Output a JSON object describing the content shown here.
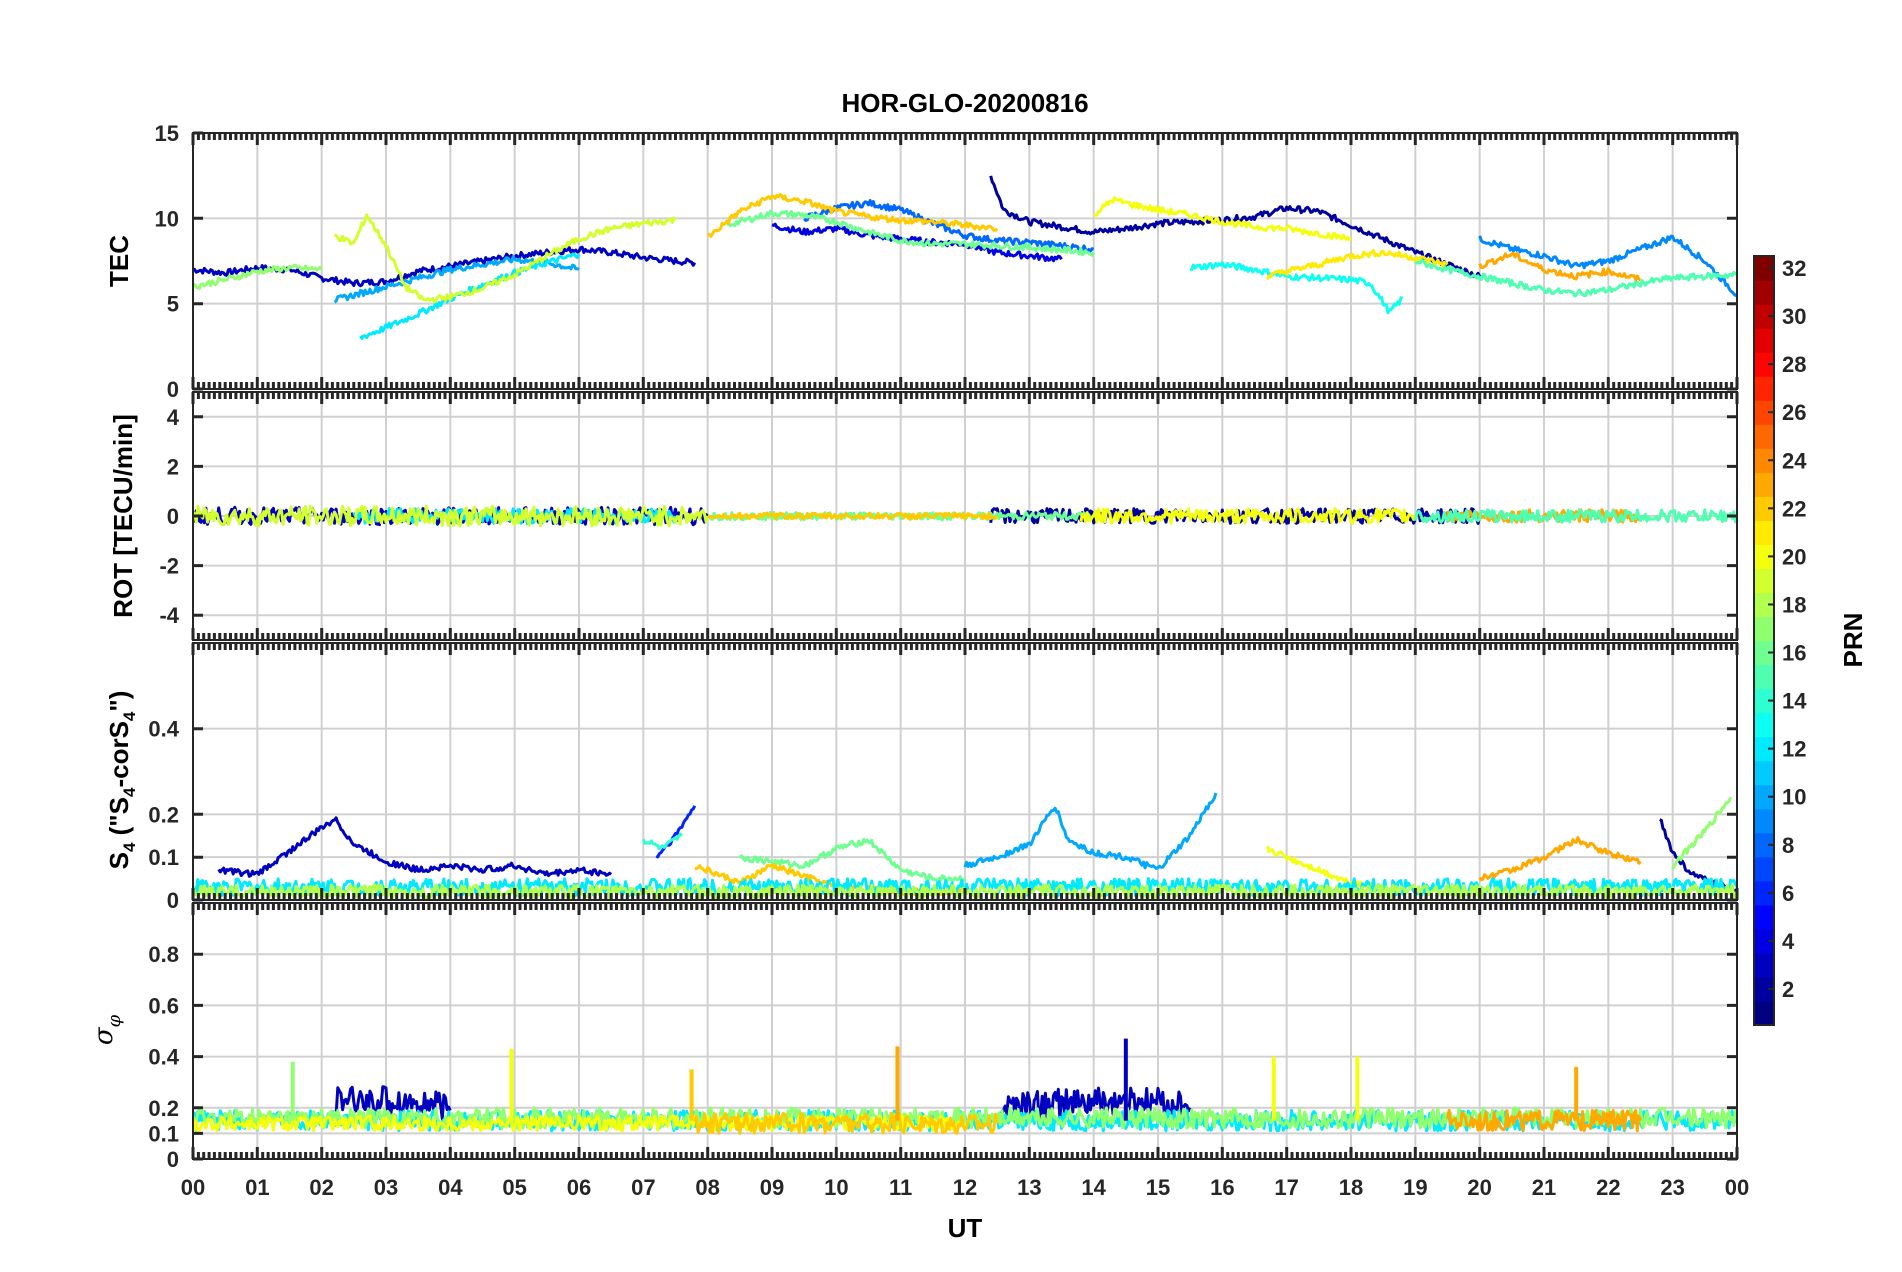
{
  "chart_data": {
    "type": "line",
    "title": "HOR-GLO-20200816",
    "xlabel": "UT",
    "x_range_hours": [
      0,
      24
    ],
    "x_tick_labels": [
      "00",
      "01",
      "02",
      "03",
      "04",
      "05",
      "06",
      "07",
      "08",
      "09",
      "10",
      "11",
      "12",
      "13",
      "14",
      "15",
      "16",
      "17",
      "18",
      "19",
      "20",
      "21",
      "22",
      "23",
      "00"
    ],
    "colorbar": {
      "label": "PRN",
      "range": [
        1,
        32
      ],
      "tick_labels": [
        "2",
        "4",
        "6",
        "8",
        "10",
        "12",
        "14",
        "16",
        "18",
        "20",
        "22",
        "24",
        "26",
        "28",
        "30",
        "32"
      ]
    },
    "panels": [
      {
        "key": "tec",
        "ylabel": "TEC",
        "ylim": [
          0,
          15
        ],
        "yticks": [
          "0",
          "5",
          "10",
          "15"
        ],
        "series": [
          {
            "prn": 3,
            "t": [
              0.0,
              0.5,
              1.0,
              1.5,
              2.0,
              2.5,
              3.0,
              3.5,
              4.0,
              4.5,
              5.0,
              5.5,
              6.0,
              6.5,
              7.0,
              7.5,
              7.8
            ],
            "v": [
              7.0,
              6.8,
              7.1,
              7.0,
              6.5,
              6.2,
              6.3,
              6.9,
              7.2,
              7.5,
              7.8,
              8.0,
              8.2,
              8.0,
              7.7,
              7.5,
              7.4
            ]
          },
          {
            "prn": 2,
            "t": [
              12.4,
              12.6,
              13.0,
              13.5,
              14.0,
              14.5,
              15.0,
              15.5,
              16.0,
              16.5,
              17.0,
              17.5,
              18.0,
              18.5,
              19.0,
              19.5,
              20.0
            ],
            "v": [
              12.5,
              10.5,
              9.8,
              9.5,
              9.2,
              9.4,
              9.7,
              9.8,
              9.9,
              10.1,
              10.6,
              10.4,
              9.6,
              8.8,
              8.0,
              7.3,
              6.6
            ]
          },
          {
            "prn": 4,
            "t": [
              9.0,
              9.5,
              10.0,
              10.5,
              11.0,
              11.5,
              12.0,
              12.5,
              13.0,
              13.5
            ],
            "v": [
              9.6,
              9.2,
              9.4,
              9.0,
              8.8,
              8.6,
              8.5,
              8.0,
              7.8,
              7.6
            ]
          },
          {
            "prn": 8,
            "t": [
              9.5,
              10.0,
              10.5,
              11.0,
              11.5,
              12.0,
              12.5,
              13.0,
              13.5,
              14.0
            ],
            "v": [
              10.0,
              10.6,
              10.9,
              10.5,
              9.7,
              9.0,
              8.7,
              8.6,
              8.4,
              8.2
            ]
          },
          {
            "prn": 9,
            "t": [
              20.0,
              20.5,
              21.0,
              21.5,
              22.0,
              22.5,
              23.0,
              23.5,
              24.0
            ],
            "v": [
              8.8,
              8.2,
              7.8,
              7.2,
              7.5,
              8.2,
              8.9,
              7.5,
              5.5
            ]
          },
          {
            "prn": 10,
            "t": [
              2.2,
              2.6,
              3.0,
              3.5,
              4.0,
              4.5,
              5.0,
              5.5,
              6.0
            ],
            "v": [
              5.2,
              5.6,
              6.0,
              6.5,
              7.0,
              7.3,
              7.6,
              7.4,
              7.0
            ]
          },
          {
            "prn": 12,
            "t": [
              2.6,
              3.0,
              3.5,
              4.0,
              4.5,
              5.0,
              5.5,
              6.0
            ],
            "v": [
              3.0,
              3.6,
              4.4,
              5.3,
              6.1,
              6.8,
              7.4,
              7.9
            ]
          },
          {
            "prn": 13,
            "t": [
              15.5,
              16.0,
              16.5,
              17.0,
              17.5,
              18.0,
              18.3,
              18.6,
              18.8
            ],
            "v": [
              7.1,
              7.3,
              7.0,
              6.6,
              6.5,
              6.4,
              6.2,
              4.5,
              5.3
            ]
          },
          {
            "prn": 16,
            "t": [
              8.3,
              9.0,
              9.5,
              10.0,
              10.5,
              11.0,
              11.5,
              12.0,
              13.0,
              14.0
            ],
            "v": [
              9.6,
              10.3,
              10.2,
              9.8,
              9.2,
              8.7,
              8.5,
              8.5,
              8.3,
              8.0
            ]
          },
          {
            "prn": 17,
            "t": [
              0.0,
              0.5,
              1.0,
              1.5,
              2.0
            ],
            "v": [
              6.0,
              6.4,
              6.9,
              7.1,
              7.0
            ]
          },
          {
            "prn": 15,
            "t": [
              19.0,
              19.5,
              20.0,
              20.5,
              21.0,
              21.5,
              22.0,
              22.5,
              23.0,
              23.5,
              24.0
            ],
            "v": [
              7.5,
              7.0,
              6.6,
              6.2,
              5.8,
              5.6,
              5.8,
              6.2,
              6.5,
              6.6,
              6.7
            ]
          },
          {
            "prn": 19,
            "t": [
              2.2,
              2.5,
              2.7,
              3.0,
              3.3,
              3.6,
              4.0,
              4.5,
              5.0,
              5.5,
              6.0,
              6.5,
              7.0,
              7.5
            ],
            "v": [
              9.0,
              8.5,
              10.2,
              8.4,
              6.0,
              5.2,
              5.4,
              5.9,
              6.7,
              7.8,
              8.8,
              9.4,
              9.7,
              9.9
            ]
          },
          {
            "prn": 20,
            "t": [
              14.0,
              14.3,
              14.6,
              15.0,
              15.5,
              16.0,
              16.5,
              17.0,
              17.5,
              18.0
            ],
            "v": [
              10.2,
              11.1,
              10.8,
              10.5,
              10.2,
              9.8,
              9.5,
              9.4,
              9.1,
              8.8
            ]
          },
          {
            "prn": 21,
            "t": [
              16.7,
              17.0,
              17.5,
              18.0,
              18.5,
              19.0,
              19.5
            ],
            "v": [
              6.6,
              6.9,
              7.3,
              7.8,
              8.0,
              7.7,
              7.3
            ]
          },
          {
            "prn": 22,
            "t": [
              8.0,
              8.5,
              9.0,
              9.5,
              10.0,
              10.5,
              11.0,
              11.5,
              12.0,
              12.5
            ],
            "v": [
              8.9,
              10.4,
              11.3,
              11.0,
              10.4,
              10.1,
              9.9,
              9.8,
              9.6,
              9.4
            ]
          },
          {
            "prn": 23,
            "t": [
              20.0,
              20.5,
              21.0,
              21.5,
              22.0,
              22.5
            ],
            "v": [
              7.2,
              7.9,
              7.0,
              6.6,
              6.9,
              6.4
            ]
          }
        ]
      },
      {
        "key": "rot",
        "ylabel": "ROT [TECU/min]",
        "ylim": [
          -5,
          5
        ],
        "yticks": [
          "-4",
          "-2",
          "0",
          "2",
          "4"
        ],
        "series": [
          {
            "prn": 3,
            "t": [
              0,
              8
            ],
            "v": [
              0,
              0
            ],
            "amplitude": 0.35
          },
          {
            "prn": 2,
            "t": [
              12.4,
              20
            ],
            "v": [
              0,
              0
            ],
            "amplitude": 0.3
          },
          {
            "prn": 12,
            "t": [
              2.5,
              7.5
            ],
            "v": [
              0,
              0
            ],
            "amplitude": 0.3
          },
          {
            "prn": 16,
            "t": [
              8,
              14
            ],
            "v": [
              0,
              0
            ],
            "amplitude": 0.15
          },
          {
            "prn": 19,
            "t": [
              0,
              8
            ],
            "v": [
              0,
              0
            ],
            "amplitude": 0.4
          },
          {
            "prn": 20,
            "t": [
              13.8,
              19
            ],
            "v": [
              0,
              0
            ],
            "amplitude": 0.3
          },
          {
            "prn": 22,
            "t": [
              8,
              12.5
            ],
            "v": [
              0,
              0
            ],
            "amplitude": 0.12
          },
          {
            "prn": 23,
            "t": [
              19.5,
              22.5
            ],
            "v": [
              0,
              0
            ],
            "amplitude": 0.25
          },
          {
            "prn": 15,
            "t": [
              19,
              24
            ],
            "v": [
              0,
              0
            ],
            "amplitude": 0.25
          }
        ]
      },
      {
        "key": "s4",
        "ylabel": "S4 (\"S4-corS4\")",
        "ylim": [
          0,
          0.6
        ],
        "yticks": [
          "0",
          "0.1",
          "0.2",
          "0.4"
        ],
        "series": [
          {
            "prn": 3,
            "t": [
              0.4,
              1.0,
              2.2,
              2.5,
              3.0,
              3.5,
              4.0,
              4.5,
              5.0,
              5.5,
              6.0,
              6.5
            ],
            "v": [
              0.07,
              0.06,
              0.19,
              0.13,
              0.09,
              0.07,
              0.08,
              0.07,
              0.08,
              0.06,
              0.07,
              0.06
            ]
          },
          {
            "prn": 6,
            "t": [
              7.2,
              7.5,
              7.8
            ],
            "v": [
              0.1,
              0.15,
              0.22
            ]
          },
          {
            "prn": 10,
            "t": [
              12.0,
              12.5,
              13.0,
              13.4,
              13.6,
              14.0,
              14.5,
              15.0,
              15.5,
              15.9
            ],
            "v": [
              0.08,
              0.1,
              0.13,
              0.22,
              0.14,
              0.11,
              0.1,
              0.07,
              0.15,
              0.25
            ]
          },
          {
            "prn": 2,
            "t": [
              22.8,
              23.0,
              23.3,
              23.6,
              24.0
            ],
            "v": [
              0.19,
              0.11,
              0.06,
              0.04,
              0.02
            ]
          },
          {
            "prn": 17,
            "t": [
              23.0,
              23.5,
              23.9
            ],
            "v": [
              0.08,
              0.16,
              0.24
            ]
          },
          {
            "prn": 16,
            "t": [
              8.5,
              9.0,
              9.5,
              10.0,
              10.5,
              11.0,
              11.5,
              12.0
            ],
            "v": [
              0.1,
              0.09,
              0.08,
              0.12,
              0.14,
              0.07,
              0.05,
              0.05
            ]
          },
          {
            "prn": 14,
            "t": [
              7.0,
              7.3,
              7.6
            ],
            "v": [
              0.14,
              0.12,
              0.15
            ]
          },
          {
            "prn": 20,
            "t": [
              16.7,
              17.0,
              17.5,
              18.0,
              18.5
            ],
            "v": [
              0.12,
              0.1,
              0.07,
              0.04,
              0.03
            ]
          },
          {
            "prn": 22,
            "t": [
              7.8,
              8.5,
              9.0,
              10.0,
              11.0,
              12.0
            ],
            "v": [
              0.08,
              0.04,
              0.08,
              0.03,
              0.02,
              0.02
            ]
          },
          {
            "prn": 23,
            "t": [
              20.0,
              20.5,
              21.0,
              21.5,
              22.0,
              22.5
            ],
            "v": [
              0.05,
              0.07,
              0.1,
              0.14,
              0.11,
              0.09
            ]
          },
          {
            "prn": 12,
            "t": [
              0,
              24
            ],
            "v": [
              0.03,
              0.03
            ],
            "amplitude": 0.02
          },
          {
            "prn": 18,
            "t": [
              0,
              24
            ],
            "v": [
              0.02,
              0.02
            ],
            "amplitude": 0.015
          }
        ]
      },
      {
        "key": "sigphi",
        "ylabel": "σφ",
        "ylim": [
          0,
          1
        ],
        "yticks": [
          "0",
          "0.1",
          "0.2",
          "0.4",
          "0.6",
          "0.8"
        ],
        "series": [
          {
            "prn": 3,
            "t": [
              2.2,
              3.0,
              3.5,
              4.0
            ],
            "v": [
              0.22,
              0.23,
              0.22,
              0.19
            ],
            "amplitude": 0.06
          },
          {
            "prn": 3,
            "t": [
              12.5,
              13.0,
              14.0,
              15.0,
              15.5
            ],
            "v": [
              0.2,
              0.21,
              0.22,
              0.22,
              0.2
            ],
            "amplitude": 0.06
          },
          {
            "prn": 12,
            "t": [
              0,
              24
            ],
            "v": [
              0.15,
              0.15
            ],
            "amplitude": 0.04
          },
          {
            "prn": 17,
            "t": [
              0,
              24
            ],
            "v": [
              0.16,
              0.16
            ],
            "amplitude": 0.04
          },
          {
            "prn": 20,
            "t": [
              0,
              12
            ],
            "v": [
              0.14,
              0.14
            ],
            "amplitude": 0.03
          },
          {
            "prn": 22,
            "t": [
              7.8,
              12.5
            ],
            "v": [
              0.14,
              0.14
            ],
            "amplitude": 0.04
          },
          {
            "prn": 23,
            "t": [
              19.5,
              22.5
            ],
            "v": [
              0.15,
              0.15
            ],
            "amplitude": 0.04
          }
        ],
        "spikes": [
          {
            "prn": 17,
            "t": 1.55,
            "v": 0.38
          },
          {
            "prn": 20,
            "t": 4.95,
            "v": 0.43
          },
          {
            "prn": 22,
            "t": 7.75,
            "v": 0.35
          },
          {
            "prn": 23,
            "t": 10.95,
            "v": 0.44
          },
          {
            "prn": 3,
            "t": 14.5,
            "v": 0.47
          },
          {
            "prn": 20,
            "t": 16.8,
            "v": 0.4
          },
          {
            "prn": 20,
            "t": 18.1,
            "v": 0.4
          },
          {
            "prn": 23,
            "t": 21.5,
            "v": 0.36
          }
        ]
      }
    ]
  }
}
